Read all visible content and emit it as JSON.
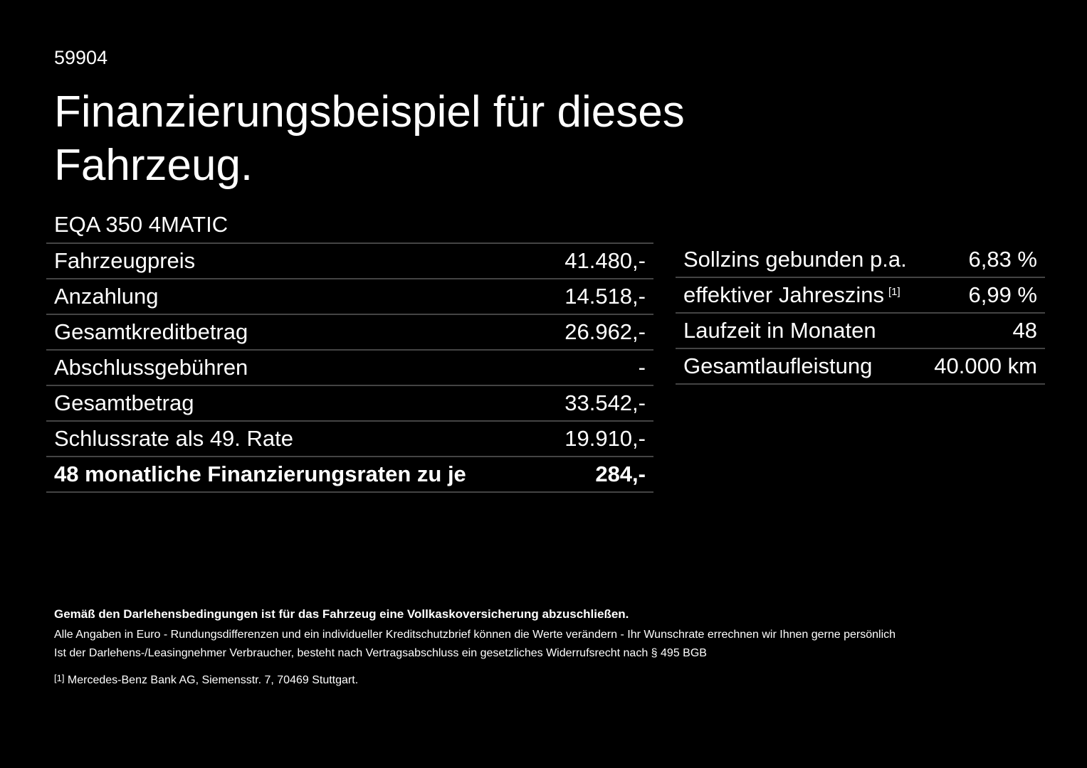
{
  "header": {
    "id": "59904",
    "title_line1": "Finanzierungsbeispiel für dieses",
    "title_line2": "Fahrzeug."
  },
  "model": "EQA 350 4MATIC",
  "left_table": {
    "rows": [
      [
        "Fahrzeugpreis",
        "41.480,-"
      ],
      [
        "Anzahlung",
        "14.518,-"
      ],
      [
        "Gesamtkreditbetrag",
        "26.962,-"
      ],
      [
        "Abschlussgebühren",
        "-"
      ],
      [
        "Gesamtbetrag",
        "33.542,-"
      ],
      [
        "Schlussrate als 49. Rate",
        "19.910,-"
      ],
      [
        "48 monatliche Finanzierungsraten zu je",
        "284,-"
      ]
    ]
  },
  "right_table": {
    "rows": [
      [
        "Sollzins gebunden p.a.",
        "6,83 %"
      ],
      [
        "effektiver Jahreszins",
        "6,99 %"
      ],
      [
        "Laufzeit in Monaten",
        "48"
      ],
      [
        "Gesamtlaufleistung",
        "40.000 km"
      ]
    ],
    "footnote_ref": "[1]"
  },
  "notes": {
    "bold": "Gemäß den Darlehensbedingungen ist für das Fahrzeug eine Vollkaskoversicherung abzuschließen.",
    "line1": "Alle Angaben in Euro - Rundungsdifferenzen und ein individueller Kreditschutzbrief können die Werte verändern - Ihr Wunschrate errechnen wir Ihnen gerne persönlich",
    "line2": "Ist der Darlehens-/Leasingnehmer Verbraucher, besteht nach Vertragsabschluss ein gesetzliches Widerrufsrecht nach § 495 BGB",
    "footnote_mark": "[1]",
    "footnote_text": "Mercedes-Benz Bank AG, Siemensstr. 7, 70469 Stuttgart."
  }
}
